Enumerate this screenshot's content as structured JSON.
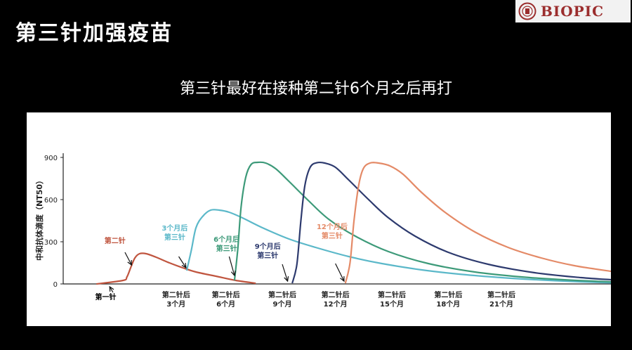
{
  "header": {
    "title": "第三针加强疫苗",
    "subtitle": "第三针最好在接种第二针6个月之后再打"
  },
  "logo": {
    "text": "BIOPIC"
  },
  "chart_data": {
    "type": "line",
    "ylabel": "中和抗体滴度（NT50）",
    "yticks": [
      0,
      300,
      600,
      900
    ],
    "ylim": [
      0,
      1000
    ],
    "xlim": [
      0,
      825
    ],
    "x_tick_labels": [
      {
        "x": 170,
        "label": [
          "第二针后",
          "3个月"
        ]
      },
      {
        "x": 245,
        "label": [
          "第二针后",
          "6个月"
        ]
      },
      {
        "x": 330,
        "label": [
          "第二针后",
          "9个月"
        ]
      },
      {
        "x": 410,
        "label": [
          "第二针后",
          "12个月"
        ]
      },
      {
        "x": 495,
        "label": [
          "第二针后",
          "15个月"
        ]
      },
      {
        "x": 580,
        "label": [
          "第二针后",
          "18个月"
        ]
      },
      {
        "x": 660,
        "label": [
          "第二针后",
          "21个月"
        ]
      }
    ],
    "annotations": [
      {
        "text": [
          "第二针"
        ],
        "x": 78,
        "y": 290,
        "color": "#c0553f",
        "arrow": [
          [
            93,
            225
          ],
          [
            103,
            135
          ]
        ]
      },
      {
        "text": [
          "3个月后",
          "第三针"
        ],
        "x": 168,
        "y": 380,
        "color": "#5bb8c9",
        "arrow": [
          [
            174,
            195
          ],
          [
            185,
            115
          ]
        ]
      },
      {
        "text": [
          "6个月后",
          "第三针"
        ],
        "x": 246,
        "y": 300,
        "color": "#3d9a79",
        "arrow": [
          [
            250,
            195
          ],
          [
            258,
            60
          ]
        ]
      },
      {
        "text": [
          "9个月后",
          "第三针"
        ],
        "x": 308,
        "y": 250,
        "color": "#2d3a6e",
        "arrow": [
          [
            330,
            140
          ],
          [
            338,
            20
          ]
        ]
      },
      {
        "text": [
          "12个月后",
          "第三针"
        ],
        "x": 405,
        "y": 390,
        "color": "#e48a67",
        "arrow": [
          [
            410,
            145
          ],
          [
            423,
            20
          ]
        ]
      },
      {
        "text": [
          "第一针"
        ],
        "x": 64,
        "y": -110,
        "color": "#000000",
        "arrow": [
          [
            75,
            -60
          ],
          [
            70,
            -20
          ]
        ]
      }
    ],
    "series": [
      {
        "color": "#c0553f",
        "x": [
          50,
          90,
          96,
          102,
          108,
          115,
          125,
          140,
          160,
          180,
          200,
          230,
          260,
          290
        ],
        "y": [
          0,
          25,
          50,
          120,
          185,
          215,
          215,
          190,
          150,
          115,
          85,
          55,
          25,
          5
        ]
      },
      {
        "color": "#5bb8c9",
        "x": [
          186,
          193,
          200,
          210,
          222,
          235,
          250,
          270,
          300,
          340,
          380,
          430,
          480,
          540,
          600,
          660,
          720,
          780,
          825
        ],
        "y": [
          95,
          240,
          400,
          480,
          525,
          525,
          510,
          470,
          400,
          320,
          260,
          195,
          145,
          100,
          68,
          45,
          28,
          15,
          8
        ]
      },
      {
        "color": "#3d9a79",
        "x": [
          258,
          263,
          268,
          275,
          283,
          293,
          305,
          320,
          340,
          370,
          400,
          440,
          490,
          550,
          620,
          690,
          760,
          825
        ],
        "y": [
          25,
          250,
          550,
          760,
          850,
          865,
          860,
          820,
          730,
          590,
          460,
          340,
          230,
          145,
          85,
          50,
          28,
          15
        ]
      },
      {
        "color": "#2d3a6e",
        "x": [
          345,
          352,
          358,
          364,
          372,
          382,
          394,
          410,
          430,
          460,
          490,
          530,
          580,
          640,
          710,
          780,
          825
        ],
        "y": [
          5,
          140,
          450,
          700,
          830,
          862,
          860,
          830,
          740,
          600,
          470,
          340,
          225,
          140,
          80,
          45,
          30
        ]
      },
      {
        "color": "#e48a67",
        "x": [
          425,
          432,
          438,
          445,
          452,
          462,
          475,
          492,
          512,
          540,
          575,
          620,
          670,
          720,
          770,
          825
        ],
        "y": [
          5,
          150,
          450,
          700,
          820,
          860,
          860,
          840,
          780,
          650,
          510,
          370,
          260,
          185,
          130,
          90
        ]
      }
    ]
  }
}
